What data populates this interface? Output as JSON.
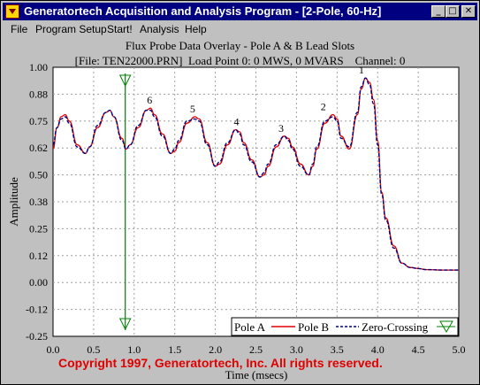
{
  "window": {
    "title": "Generatortech Acquisition and Analysis Program - [2-Pole, 60-Hz]",
    "minimize_glyph": "_",
    "maximize_glyph": "□",
    "close_glyph": "✕"
  },
  "menu": {
    "file": "File",
    "program_setup": "Program Setup",
    "start": "Start!",
    "analysis": "Analysis",
    "help": "Help"
  },
  "plot": {
    "title": "Flux Probe Data Overlay - Pole A & B Lead Slots",
    "subtitle": "[File: TEN22000.PRN]  Load Point 0: 0 MWS, 0 MVARS    Channel: 0"
  },
  "copyright": "Copyright 1997, Generatortech, Inc. All rights reserved.",
  "colors": {
    "pole_a": "#e00000",
    "pole_b": "#000080",
    "zero_crossing": "#008000",
    "copyright": "#e00000"
  },
  "chart_data": {
    "type": "line",
    "xlabel": "Time (msecs)",
    "ylabel": "Amplitude",
    "xlim": [
      0.0,
      5.0
    ],
    "ylim": [
      -0.25,
      1.0
    ],
    "x_ticks": [
      "0.0",
      "0.5",
      "1.0",
      "1.5",
      "2.0",
      "2.5",
      "3.0",
      "3.5",
      "4.0",
      "4.5",
      "5.0"
    ],
    "y_ticks": [
      "1.00",
      "0.88",
      "0.75",
      "0.62",
      "0.50",
      "0.38",
      "0.25",
      "0.12",
      "0.00",
      "-0.12",
      "-0.25"
    ],
    "grid": true,
    "legend_placement": "bottom-right",
    "legend": [
      "Pole A",
      "Pole B",
      "Zero-Crossing"
    ],
    "series": [
      {
        "name": "Pole A",
        "x": [
          0.0,
          0.05,
          0.1,
          0.15,
          0.2,
          0.3,
          0.4,
          0.45,
          0.55,
          0.65,
          0.7,
          0.75,
          0.85,
          0.9,
          0.95,
          1.05,
          1.15,
          1.2,
          1.25,
          1.35,
          1.45,
          1.5,
          1.55,
          1.65,
          1.75,
          1.8,
          1.9,
          2.0,
          2.05,
          2.15,
          2.25,
          2.3,
          2.35,
          2.45,
          2.55,
          2.6,
          2.65,
          2.75,
          2.85,
          2.9,
          2.95,
          3.05,
          3.15,
          3.2,
          3.25,
          3.35,
          3.45,
          3.5,
          3.55,
          3.65,
          3.75,
          3.8,
          3.85,
          3.9,
          3.95,
          4.0,
          4.05,
          4.1,
          4.2,
          4.3,
          4.4,
          4.5,
          4.6,
          4.8,
          5.0
        ],
        "y": [
          0.62,
          0.72,
          0.77,
          0.78,
          0.75,
          0.64,
          0.6,
          0.63,
          0.72,
          0.79,
          0.8,
          0.77,
          0.67,
          0.62,
          0.64,
          0.72,
          0.8,
          0.81,
          0.78,
          0.69,
          0.6,
          0.61,
          0.65,
          0.74,
          0.77,
          0.76,
          0.65,
          0.54,
          0.55,
          0.64,
          0.71,
          0.7,
          0.65,
          0.57,
          0.49,
          0.5,
          0.54,
          0.63,
          0.68,
          0.67,
          0.63,
          0.55,
          0.5,
          0.54,
          0.62,
          0.74,
          0.78,
          0.76,
          0.68,
          0.62,
          0.78,
          0.9,
          0.95,
          0.93,
          0.85,
          0.66,
          0.42,
          0.3,
          0.17,
          0.09,
          0.07,
          0.065,
          0.06,
          0.058,
          0.058
        ]
      },
      {
        "name": "Pole B",
        "x": [
          0.0,
          0.05,
          0.1,
          0.15,
          0.2,
          0.3,
          0.4,
          0.45,
          0.55,
          0.65,
          0.7,
          0.75,
          0.85,
          0.9,
          0.95,
          1.05,
          1.15,
          1.2,
          1.25,
          1.35,
          1.45,
          1.5,
          1.55,
          1.65,
          1.75,
          1.8,
          1.9,
          2.0,
          2.05,
          2.15,
          2.25,
          2.3,
          2.35,
          2.45,
          2.55,
          2.6,
          2.65,
          2.75,
          2.85,
          2.9,
          2.95,
          3.05,
          3.15,
          3.2,
          3.25,
          3.35,
          3.45,
          3.5,
          3.55,
          3.65,
          3.75,
          3.8,
          3.85,
          3.9,
          3.95,
          4.0,
          4.05,
          4.1,
          4.2,
          4.3,
          4.4,
          4.5,
          4.6,
          4.8,
          5.0
        ],
        "y": [
          0.64,
          0.72,
          0.76,
          0.77,
          0.74,
          0.63,
          0.6,
          0.63,
          0.73,
          0.79,
          0.8,
          0.77,
          0.66,
          0.62,
          0.64,
          0.73,
          0.8,
          0.8,
          0.77,
          0.68,
          0.6,
          0.62,
          0.66,
          0.75,
          0.76,
          0.75,
          0.64,
          0.54,
          0.56,
          0.65,
          0.71,
          0.69,
          0.64,
          0.56,
          0.49,
          0.51,
          0.55,
          0.64,
          0.68,
          0.66,
          0.62,
          0.54,
          0.5,
          0.55,
          0.63,
          0.75,
          0.77,
          0.75,
          0.67,
          0.63,
          0.79,
          0.91,
          0.95,
          0.92,
          0.83,
          0.64,
          0.41,
          0.29,
          0.16,
          0.09,
          0.07,
          0.065,
          0.06,
          0.058,
          0.058
        ]
      }
    ],
    "zero_crossing_x": 0.89,
    "peak_labels": [
      {
        "label": "6",
        "x": 1.19,
        "y": 0.81
      },
      {
        "label": "5",
        "x": 1.72,
        "y": 0.77
      },
      {
        "label": "4",
        "x": 2.26,
        "y": 0.71
      },
      {
        "label": "3",
        "x": 2.81,
        "y": 0.68
      },
      {
        "label": "2",
        "x": 3.33,
        "y": 0.78
      },
      {
        "label": "1",
        "x": 3.8,
        "y": 0.95
      }
    ]
  }
}
